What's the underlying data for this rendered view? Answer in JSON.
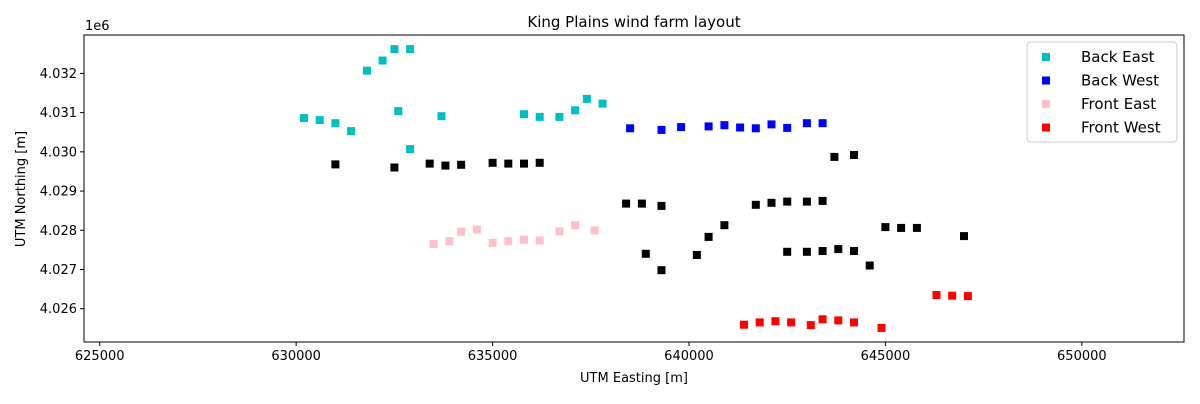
{
  "chart_data": {
    "type": "scatter",
    "title": "King Plains wind farm layout",
    "xlabel": "UTM Easting [m]",
    "ylabel": "UTM Northing [m]",
    "y_offset_label": "1e6",
    "xlim": [
      624600,
      652600
    ],
    "ylim": [
      4025150,
      4032980
    ],
    "xticks": [
      625000,
      630000,
      635000,
      640000,
      645000,
      650000
    ],
    "xtick_labels": [
      "625000",
      "630000",
      "635000",
      "640000",
      "645000",
      "650000"
    ],
    "yticks": [
      4026000,
      4027000,
      4028000,
      4029000,
      4030000,
      4031000,
      4032000
    ],
    "ytick_labels": [
      "4.026",
      "4.027",
      "4.028",
      "4.029",
      "4.030",
      "4.031",
      "4.032"
    ],
    "grid": false,
    "legend_position": "top-right",
    "marker": "square",
    "series": [
      {
        "name": "",
        "color": "#000000",
        "points": [
          [
            631000,
            4029680
          ],
          [
            632500,
            4029600
          ],
          [
            633400,
            4029700
          ],
          [
            633800,
            4029650
          ],
          [
            634200,
            4029670
          ],
          [
            635000,
            4029720
          ],
          [
            635400,
            4029700
          ],
          [
            635800,
            4029700
          ],
          [
            636200,
            4029720
          ],
          [
            638400,
            4028680
          ],
          [
            638800,
            4028680
          ],
          [
            639300,
            4028620
          ],
          [
            641700,
            4028650
          ],
          [
            642100,
            4028700
          ],
          [
            642500,
            4028730
          ],
          [
            643000,
            4028730
          ],
          [
            643400,
            4028750
          ],
          [
            643700,
            4029870
          ],
          [
            644200,
            4029920
          ],
          [
            645000,
            4028080
          ],
          [
            645400,
            4028060
          ],
          [
            645800,
            4028060
          ],
          [
            647000,
            4027850
          ],
          [
            638900,
            4027400
          ],
          [
            639300,
            4026980
          ],
          [
            640200,
            4027370
          ],
          [
            640500,
            4027830
          ],
          [
            640900,
            4028130
          ],
          [
            642500,
            4027450
          ],
          [
            643000,
            4027450
          ],
          [
            643400,
            4027470
          ],
          [
            643800,
            4027520
          ],
          [
            644200,
            4027470
          ],
          [
            644600,
            4027100
          ]
        ]
      },
      {
        "name": "Back East",
        "color": "#00bfbf",
        "points": [
          [
            630200,
            4030860
          ],
          [
            630600,
            4030810
          ],
          [
            631000,
            4030730
          ],
          [
            631400,
            4030530
          ],
          [
            631800,
            4032070
          ],
          [
            632200,
            4032330
          ],
          [
            632500,
            4032620
          ],
          [
            632900,
            4032620
          ],
          [
            632600,
            4031040
          ],
          [
            632900,
            4030070
          ],
          [
            633700,
            4030910
          ],
          [
            635800,
            4030960
          ],
          [
            636200,
            4030890
          ],
          [
            636700,
            4030890
          ],
          [
            637100,
            4031060
          ],
          [
            637400,
            4031350
          ],
          [
            637800,
            4031230
          ]
        ]
      },
      {
        "name": "Back West",
        "color": "#0000ff",
        "points": [
          [
            638500,
            4030600
          ],
          [
            639300,
            4030560
          ],
          [
            639800,
            4030630
          ],
          [
            640500,
            4030650
          ],
          [
            640900,
            4030680
          ],
          [
            641300,
            4030620
          ],
          [
            641700,
            4030600
          ],
          [
            642100,
            4030700
          ],
          [
            642500,
            4030610
          ],
          [
            643000,
            4030730
          ],
          [
            643400,
            4030730
          ]
        ]
      },
      {
        "name": "Front East",
        "color": "#ffc0cb",
        "points": [
          [
            633500,
            4027650
          ],
          [
            633900,
            4027720
          ],
          [
            634200,
            4027960
          ],
          [
            634600,
            4028020
          ],
          [
            635000,
            4027680
          ],
          [
            635400,
            4027720
          ],
          [
            635800,
            4027760
          ],
          [
            636200,
            4027740
          ],
          [
            636700,
            4027970
          ],
          [
            637100,
            4028130
          ],
          [
            637600,
            4028000
          ]
        ]
      },
      {
        "name": "Front West",
        "color": "#ff0000",
        "points": [
          [
            641400,
            4025590
          ],
          [
            641800,
            4025650
          ],
          [
            642200,
            4025680
          ],
          [
            642600,
            4025650
          ],
          [
            643100,
            4025580
          ],
          [
            643400,
            4025730
          ],
          [
            643800,
            4025700
          ],
          [
            644200,
            4025650
          ],
          [
            644900,
            4025510
          ],
          [
            646300,
            4026350
          ],
          [
            646700,
            4026330
          ],
          [
            647100,
            4026320
          ]
        ]
      }
    ]
  }
}
